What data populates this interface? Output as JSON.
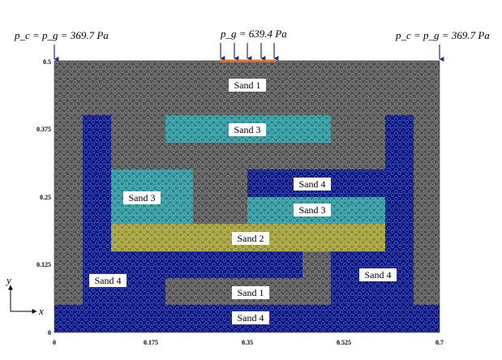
{
  "boundary": {
    "left": "p_c = p_g = 369.7 Pa",
    "center": "p_g = 639.4 Pa",
    "right": "p_c = p_g = 369.7 Pa"
  },
  "axes": {
    "x_label": "x",
    "y_label": "y",
    "x_ticks": [
      "0",
      "0.175",
      "0.35",
      "0.525",
      "0.7"
    ],
    "y_ticks": [
      "0",
      "0.125",
      "0.25",
      "0.375",
      "0.5"
    ]
  },
  "regions": [
    {
      "id": "sand1-top",
      "label": "Sand 1"
    },
    {
      "id": "sand3-top",
      "label": "Sand 3"
    },
    {
      "id": "sand3-left",
      "label": "Sand 3"
    },
    {
      "id": "sand4-mid",
      "label": "Sand 4"
    },
    {
      "id": "sand3-mid",
      "label": "Sand 3"
    },
    {
      "id": "sand2",
      "label": "Sand 2"
    },
    {
      "id": "sand4-left",
      "label": "Sand 4"
    },
    {
      "id": "sand4-right",
      "label": "Sand 4"
    },
    {
      "id": "sand1-bottom",
      "label": "Sand 1"
    },
    {
      "id": "sand4-bottom",
      "label": "Sand 4"
    }
  ],
  "colors": {
    "sand1": "#5a5a5a",
    "sand2": "#a6a23a",
    "sand3": "#2f9aa0",
    "sand4": "#0d1a8c",
    "inflow": "#e8702a",
    "arrow": "#1a2a8a"
  }
}
